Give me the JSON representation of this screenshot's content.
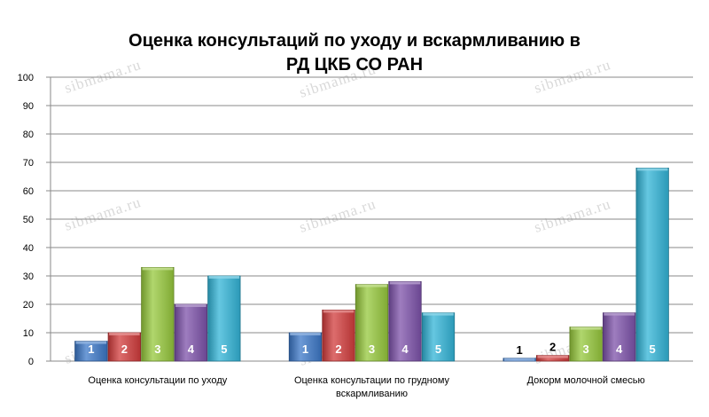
{
  "watermark_text": "sibmama.ru",
  "chart_data": {
    "type": "bar",
    "title_lines": [
      "Оценка консультаций по уходу и вскармливанию в",
      "РД ЦКБ СО РАН"
    ],
    "xlabel": "",
    "ylabel": "",
    "ylim": [
      0,
      100
    ],
    "yticks": [
      "0",
      "10",
      "20",
      "30",
      "40",
      "50",
      "60",
      "70",
      "80",
      "90",
      "100"
    ],
    "grid": true,
    "legend": "none",
    "categories": [
      [
        "Оценка консультации по уходу"
      ],
      [
        "Оценка консультации по грудному",
        "вскармливанию"
      ],
      [
        "Докорм молочной смесью"
      ]
    ],
    "series": [
      {
        "label": "1",
        "color": "#3c78c8",
        "values": [
          7,
          10,
          1
        ]
      },
      {
        "label": "2",
        "color": "#d23c3c",
        "values": [
          10,
          18,
          2
        ]
      },
      {
        "label": "3",
        "color": "#96c83c",
        "values": [
          33,
          27,
          12
        ]
      },
      {
        "label": "4",
        "color": "#7d52aa",
        "values": [
          20,
          28,
          17
        ]
      },
      {
        "label": "5",
        "color": "#32b4d7",
        "values": [
          30,
          17,
          68
        ]
      }
    ]
  }
}
